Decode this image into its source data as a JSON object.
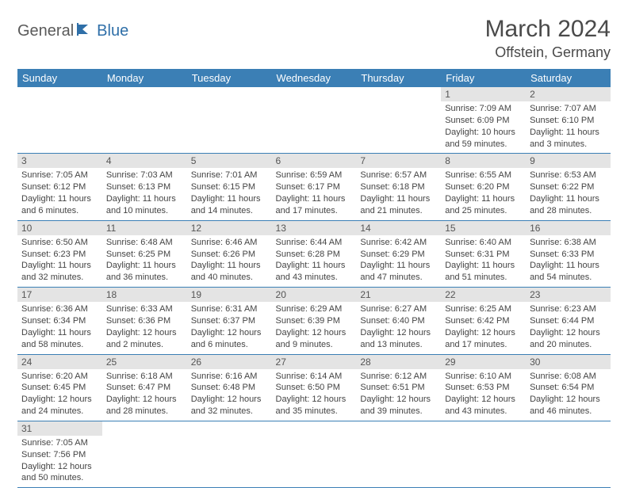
{
  "logo": {
    "part1": "General",
    "part2": "Blue"
  },
  "title": "March 2024",
  "location": "Offstein, Germany",
  "colors": {
    "header_bg": "#3b7fb5",
    "header_fg": "#ffffff",
    "daynum_bg": "#e4e4e4",
    "row_border": "#3b7fb5",
    "logo_gray": "#5a5a5a",
    "logo_blue": "#2f6fa8"
  },
  "weekdays": [
    "Sunday",
    "Monday",
    "Tuesday",
    "Wednesday",
    "Thursday",
    "Friday",
    "Saturday"
  ],
  "weeks": [
    [
      null,
      null,
      null,
      null,
      null,
      {
        "n": "1",
        "sr": "Sunrise: 7:09 AM",
        "ss": "Sunset: 6:09 PM",
        "dl": "Daylight: 10 hours and 59 minutes."
      },
      {
        "n": "2",
        "sr": "Sunrise: 7:07 AM",
        "ss": "Sunset: 6:10 PM",
        "dl": "Daylight: 11 hours and 3 minutes."
      }
    ],
    [
      {
        "n": "3",
        "sr": "Sunrise: 7:05 AM",
        "ss": "Sunset: 6:12 PM",
        "dl": "Daylight: 11 hours and 6 minutes."
      },
      {
        "n": "4",
        "sr": "Sunrise: 7:03 AM",
        "ss": "Sunset: 6:13 PM",
        "dl": "Daylight: 11 hours and 10 minutes."
      },
      {
        "n": "5",
        "sr": "Sunrise: 7:01 AM",
        "ss": "Sunset: 6:15 PM",
        "dl": "Daylight: 11 hours and 14 minutes."
      },
      {
        "n": "6",
        "sr": "Sunrise: 6:59 AM",
        "ss": "Sunset: 6:17 PM",
        "dl": "Daylight: 11 hours and 17 minutes."
      },
      {
        "n": "7",
        "sr": "Sunrise: 6:57 AM",
        "ss": "Sunset: 6:18 PM",
        "dl": "Daylight: 11 hours and 21 minutes."
      },
      {
        "n": "8",
        "sr": "Sunrise: 6:55 AM",
        "ss": "Sunset: 6:20 PM",
        "dl": "Daylight: 11 hours and 25 minutes."
      },
      {
        "n": "9",
        "sr": "Sunrise: 6:53 AM",
        "ss": "Sunset: 6:22 PM",
        "dl": "Daylight: 11 hours and 28 minutes."
      }
    ],
    [
      {
        "n": "10",
        "sr": "Sunrise: 6:50 AM",
        "ss": "Sunset: 6:23 PM",
        "dl": "Daylight: 11 hours and 32 minutes."
      },
      {
        "n": "11",
        "sr": "Sunrise: 6:48 AM",
        "ss": "Sunset: 6:25 PM",
        "dl": "Daylight: 11 hours and 36 minutes."
      },
      {
        "n": "12",
        "sr": "Sunrise: 6:46 AM",
        "ss": "Sunset: 6:26 PM",
        "dl": "Daylight: 11 hours and 40 minutes."
      },
      {
        "n": "13",
        "sr": "Sunrise: 6:44 AM",
        "ss": "Sunset: 6:28 PM",
        "dl": "Daylight: 11 hours and 43 minutes."
      },
      {
        "n": "14",
        "sr": "Sunrise: 6:42 AM",
        "ss": "Sunset: 6:29 PM",
        "dl": "Daylight: 11 hours and 47 minutes."
      },
      {
        "n": "15",
        "sr": "Sunrise: 6:40 AM",
        "ss": "Sunset: 6:31 PM",
        "dl": "Daylight: 11 hours and 51 minutes."
      },
      {
        "n": "16",
        "sr": "Sunrise: 6:38 AM",
        "ss": "Sunset: 6:33 PM",
        "dl": "Daylight: 11 hours and 54 minutes."
      }
    ],
    [
      {
        "n": "17",
        "sr": "Sunrise: 6:36 AM",
        "ss": "Sunset: 6:34 PM",
        "dl": "Daylight: 11 hours and 58 minutes."
      },
      {
        "n": "18",
        "sr": "Sunrise: 6:33 AM",
        "ss": "Sunset: 6:36 PM",
        "dl": "Daylight: 12 hours and 2 minutes."
      },
      {
        "n": "19",
        "sr": "Sunrise: 6:31 AM",
        "ss": "Sunset: 6:37 PM",
        "dl": "Daylight: 12 hours and 6 minutes."
      },
      {
        "n": "20",
        "sr": "Sunrise: 6:29 AM",
        "ss": "Sunset: 6:39 PM",
        "dl": "Daylight: 12 hours and 9 minutes."
      },
      {
        "n": "21",
        "sr": "Sunrise: 6:27 AM",
        "ss": "Sunset: 6:40 PM",
        "dl": "Daylight: 12 hours and 13 minutes."
      },
      {
        "n": "22",
        "sr": "Sunrise: 6:25 AM",
        "ss": "Sunset: 6:42 PM",
        "dl": "Daylight: 12 hours and 17 minutes."
      },
      {
        "n": "23",
        "sr": "Sunrise: 6:23 AM",
        "ss": "Sunset: 6:44 PM",
        "dl": "Daylight: 12 hours and 20 minutes."
      }
    ],
    [
      {
        "n": "24",
        "sr": "Sunrise: 6:20 AM",
        "ss": "Sunset: 6:45 PM",
        "dl": "Daylight: 12 hours and 24 minutes."
      },
      {
        "n": "25",
        "sr": "Sunrise: 6:18 AM",
        "ss": "Sunset: 6:47 PM",
        "dl": "Daylight: 12 hours and 28 minutes."
      },
      {
        "n": "26",
        "sr": "Sunrise: 6:16 AM",
        "ss": "Sunset: 6:48 PM",
        "dl": "Daylight: 12 hours and 32 minutes."
      },
      {
        "n": "27",
        "sr": "Sunrise: 6:14 AM",
        "ss": "Sunset: 6:50 PM",
        "dl": "Daylight: 12 hours and 35 minutes."
      },
      {
        "n": "28",
        "sr": "Sunrise: 6:12 AM",
        "ss": "Sunset: 6:51 PM",
        "dl": "Daylight: 12 hours and 39 minutes."
      },
      {
        "n": "29",
        "sr": "Sunrise: 6:10 AM",
        "ss": "Sunset: 6:53 PM",
        "dl": "Daylight: 12 hours and 43 minutes."
      },
      {
        "n": "30",
        "sr": "Sunrise: 6:08 AM",
        "ss": "Sunset: 6:54 PM",
        "dl": "Daylight: 12 hours and 46 minutes."
      }
    ],
    [
      {
        "n": "31",
        "sr": "Sunrise: 7:05 AM",
        "ss": "Sunset: 7:56 PM",
        "dl": "Daylight: 12 hours and 50 minutes."
      },
      null,
      null,
      null,
      null,
      null,
      null
    ]
  ]
}
